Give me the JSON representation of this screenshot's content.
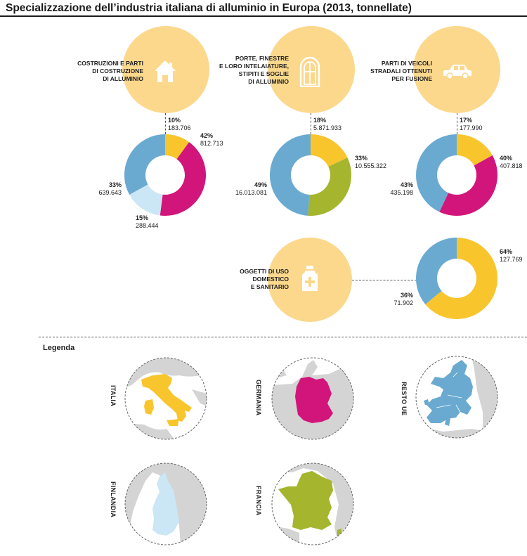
{
  "title": "Specializzazione dell’industria italiana di alluminio in Europa (2013, tonnellate)",
  "legend_title": "Legenda",
  "colors": {
    "italia": "#f9c52d",
    "germania": "#d2157b",
    "finlandia": "#cbe6f4",
    "francia": "#a5b52d",
    "resto_ue": "#6aaad1",
    "category_bg": "#fcd88d",
    "map_land": "#d4d4d4"
  },
  "categories": {
    "costruzioni": {
      "label_lines": [
        "COSTRUZIONI E PARTI",
        "DI COSTRUZIONE",
        "DI ALLUMINIO"
      ],
      "icon": "house-icon"
    },
    "porte": {
      "label_lines": [
        "PORTE, FINESTRE",
        "E LORO INTELAIATURE,",
        "STIPITI E SOGLIE",
        "DI ALLUMINIO"
      ],
      "icon": "window-icon"
    },
    "veicoli": {
      "label_lines": [
        "PARTI DI VEICOLI",
        "STRADALI OTTENUTI",
        "PER FUSIONE"
      ],
      "icon": "car-icon"
    },
    "oggetti": {
      "label_lines": [
        "OGGETTI DI USO",
        "DOMESTICO",
        "E SANITARIO"
      ],
      "icon": "bottle-icon"
    }
  },
  "chart_data": [
    {
      "type": "pie",
      "category": "costruzioni",
      "slices": [
        {
          "country": "italia",
          "percent": 10,
          "value": 183706,
          "pct_label": "10%",
          "value_label": "183.706"
        },
        {
          "country": "germania",
          "percent": 42,
          "value": 812713,
          "pct_label": "42%",
          "value_label": "812.713"
        },
        {
          "country": "finlandia",
          "percent": 15,
          "value": 288444,
          "pct_label": "15%",
          "value_label": "288.444"
        },
        {
          "country": "resto_ue",
          "percent": 33,
          "value": 639643,
          "pct_label": "33%",
          "value_label": "639.643"
        }
      ]
    },
    {
      "type": "pie",
      "category": "porte",
      "slices": [
        {
          "country": "italia",
          "percent": 18,
          "value": 5871933,
          "pct_label": "18%",
          "value_label": "5.871.933"
        },
        {
          "country": "francia",
          "percent": 33,
          "value": 10555322,
          "pct_label": "33%",
          "value_label": "10.555.322"
        },
        {
          "country": "resto_ue",
          "percent": 49,
          "value": 16013081,
          "pct_label": "49%",
          "value_label": "16.013.081"
        }
      ]
    },
    {
      "type": "pie",
      "category": "veicoli",
      "slices": [
        {
          "country": "italia",
          "percent": 17,
          "value": 177990,
          "pct_label": "17%",
          "value_label": "177.990"
        },
        {
          "country": "germania",
          "percent": 40,
          "value": 407818,
          "pct_label": "40%",
          "value_label": "407.818"
        },
        {
          "country": "resto_ue",
          "percent": 43,
          "value": 435198,
          "pct_label": "43%",
          "value_label": "435.198"
        }
      ]
    },
    {
      "type": "pie",
      "category": "oggetti",
      "slices": [
        {
          "country": "italia",
          "percent": 64,
          "value": 127769,
          "pct_label": "64%",
          "value_label": "127.769"
        },
        {
          "country": "resto_ue",
          "percent": 36,
          "value": 71902,
          "pct_label": "36%",
          "value_label": "71.902"
        }
      ]
    }
  ],
  "legend": [
    {
      "key": "italia",
      "label": "ITALIA"
    },
    {
      "key": "germania",
      "label": "GERMANIA"
    },
    {
      "key": "resto_ue",
      "label": "RESTO UE"
    },
    {
      "key": "finlandia",
      "label": "FINLANDIA"
    },
    {
      "key": "francia",
      "label": "FRANCIA"
    }
  ]
}
